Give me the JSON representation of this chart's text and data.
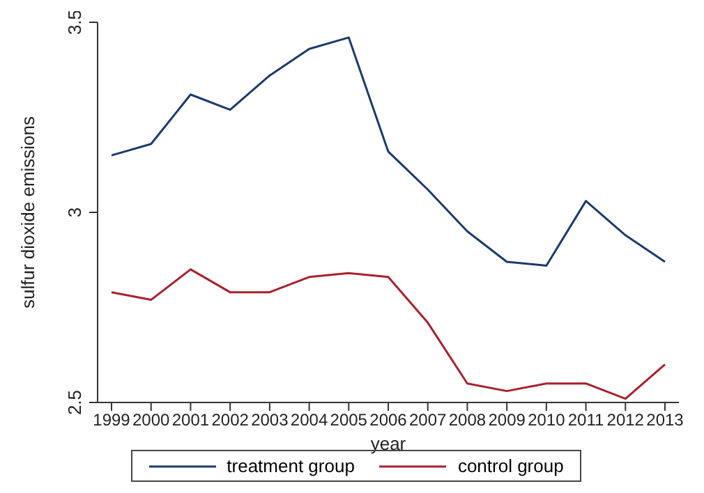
{
  "chart_data": {
    "type": "line",
    "xlabel": "year",
    "ylabel": "sulfur dioxide emissions",
    "categories": [
      "1999",
      "2000",
      "2001",
      "2002",
      "2003",
      "2004",
      "2005",
      "2006",
      "2007",
      "2008",
      "2009",
      "2010",
      "2011",
      "2012",
      "2013"
    ],
    "series": [
      {
        "name": "treatment group",
        "color": "#1a3a6b",
        "values": [
          3.15,
          3.18,
          3.31,
          3.27,
          3.36,
          3.43,
          3.46,
          3.16,
          3.06,
          2.95,
          2.87,
          2.86,
          3.03,
          2.94,
          2.87
        ]
      },
      {
        "name": "control group",
        "color": "#a8202e",
        "values": [
          2.79,
          2.77,
          2.85,
          2.79,
          2.79,
          2.83,
          2.84,
          2.83,
          2.71,
          2.55,
          2.53,
          2.55,
          2.55,
          2.51,
          2.6
        ]
      }
    ],
    "ylim": [
      2.5,
      3.5
    ],
    "yticks": [
      2.5,
      3,
      3.5
    ],
    "grid": false,
    "legend": "bottom",
    "marker": "none",
    "line_style": "solid"
  }
}
